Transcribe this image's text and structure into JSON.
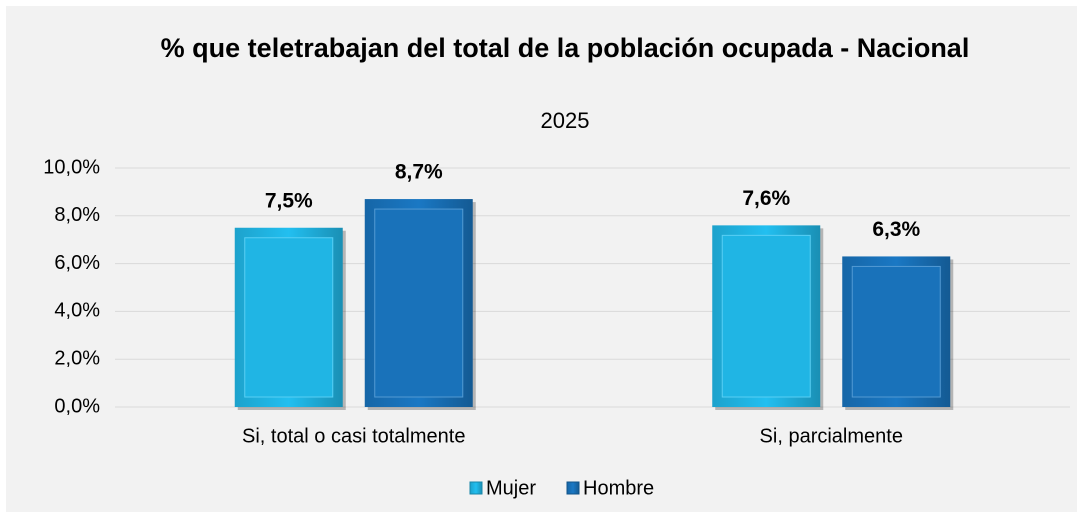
{
  "chart_data": {
    "type": "bar",
    "title": "% que teletrabajan del total de la población ocupada - Nacional",
    "subtitle": "2025",
    "categories": [
      "Si, total o casi totalmente",
      "Si, parcialmente"
    ],
    "series": [
      {
        "name": "Mujer",
        "color": "#22bff0",
        "values": [
          7.5,
          7.6
        ],
        "value_labels": [
          "7,5%",
          "7,6%"
        ]
      },
      {
        "name": "Hombre",
        "color": "#1a78c4",
        "values": [
          8.7,
          6.3
        ],
        "value_labels": [
          "8,7%",
          "6,3%"
        ]
      }
    ],
    "ylim": [
      0,
      10
    ],
    "yticks": [
      {
        "value": 0,
        "label": "0,0%"
      },
      {
        "value": 2,
        "label": "2,0%"
      },
      {
        "value": 4,
        "label": "4,0%"
      },
      {
        "value": 6,
        "label": "6,0%"
      },
      {
        "value": 8,
        "label": "8,0%"
      },
      {
        "value": 10,
        "label": "10,0%"
      }
    ],
    "grid": true,
    "legend": "bottom"
  }
}
